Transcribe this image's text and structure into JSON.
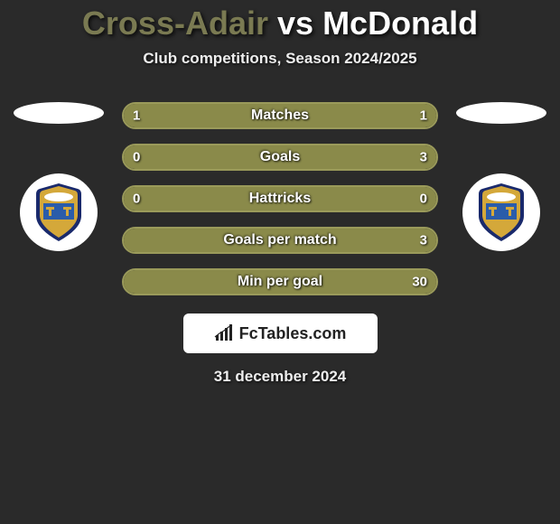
{
  "title": {
    "left": "Cross-Adair",
    "vs": "vs",
    "right": "McDonald"
  },
  "subtitle": "Club competitions, Season 2024/2025",
  "date": "31 december 2024",
  "brand": "FcTables.com",
  "colors": {
    "left": "#8a8a4a",
    "right": "#8a8a4a",
    "left_border": "#9a9a5a",
    "right_border": "#9a9a5a",
    "title_left": "#7a7a52",
    "title_right": "#ffffff",
    "badge_navy": "#1a2a6c",
    "badge_gold": "#d4a83a",
    "badge_blue": "#2a5caa"
  },
  "stats": [
    {
      "label": "Matches",
      "left_val": "1",
      "right_val": "1",
      "left_pct": 50,
      "right_pct": 50
    },
    {
      "label": "Goals",
      "left_val": "0",
      "right_val": "3",
      "left_pct": 18,
      "right_pct": 82
    },
    {
      "label": "Hattricks",
      "left_val": "0",
      "right_val": "0",
      "left_pct": 50,
      "right_pct": 50
    },
    {
      "label": "Goals per match",
      "left_val": "",
      "right_val": "3",
      "left_pct": 25,
      "right_pct": 75
    },
    {
      "label": "Min per goal",
      "left_val": "",
      "right_val": "30",
      "left_pct": 30,
      "right_pct": 70
    }
  ]
}
